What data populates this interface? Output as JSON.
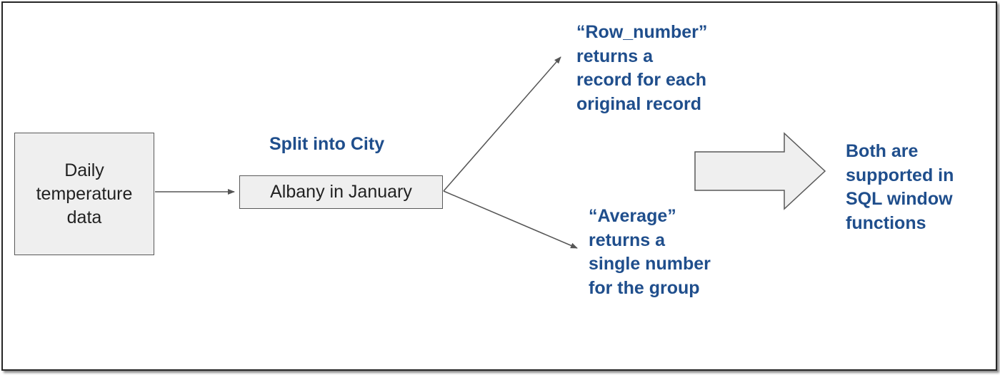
{
  "source_box": {
    "text": "Daily\ntemperature\ndata"
  },
  "split_label": "Split into City",
  "group_box": {
    "text": "Albany in January"
  },
  "row_number_label": "“Row_number”\nreturns a\nrecord for each\noriginal record",
  "average_label": "“Average”\nreturns a\nsingle number\nfor the group",
  "conclusion_label": "Both are\nsupported in\nSQL window\nfunctions",
  "colors": {
    "label_text": "#1f4e8c",
    "box_fill": "#efefef",
    "box_border": "#595959",
    "arrow": "#555555",
    "frame_border": "#262626"
  }
}
